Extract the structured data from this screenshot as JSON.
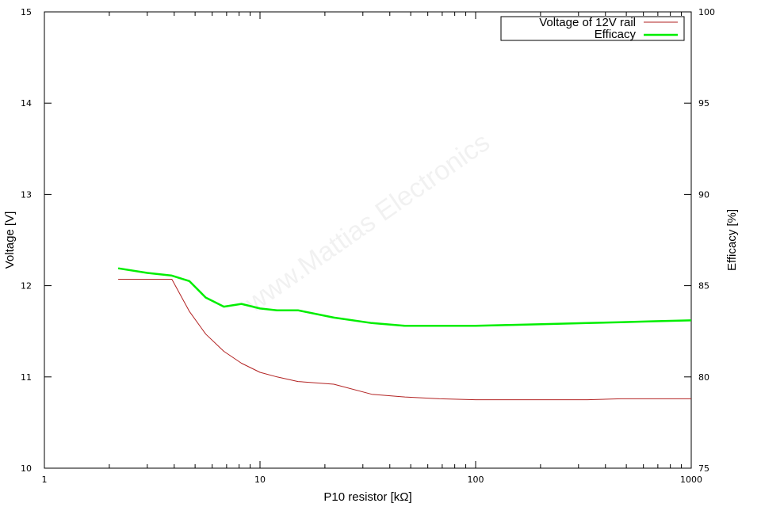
{
  "chart_data": {
    "type": "line",
    "title": "",
    "xlabel": "P10 resistor [kΩ]",
    "ylabel": "Voltage [V]",
    "y2label": "Efficacy [%]",
    "xscale": "log",
    "xlim": [
      1,
      1000
    ],
    "ylim": [
      10,
      15
    ],
    "y2lim": [
      75,
      100
    ],
    "x_ticks": [
      "1",
      "10",
      "100",
      "1000"
    ],
    "y_ticks": [
      "10",
      "11",
      "12",
      "13",
      "14",
      "15"
    ],
    "y2_ticks": [
      "75",
      "80",
      "85",
      "90",
      "95",
      "100"
    ],
    "grid": false,
    "legend_position": "top-right",
    "watermark": "www.Mattias Electronics",
    "series": [
      {
        "name": "Voltage of 12V rail",
        "axis": "left",
        "color": "#b22222",
        "x": [
          2.2,
          3.9,
          4.7,
          5.6,
          6.8,
          8.2,
          10,
          12,
          15,
          22,
          33,
          47,
          68,
          100,
          150,
          220,
          330,
          470,
          680,
          1000
        ],
        "y": [
          12.07,
          12.07,
          11.72,
          11.47,
          11.28,
          11.15,
          11.05,
          11.0,
          10.95,
          10.92,
          10.81,
          10.78,
          10.76,
          10.75,
          10.75,
          10.75,
          10.75,
          10.76,
          10.76,
          10.76
        ]
      },
      {
        "name": "Efficacy",
        "axis": "right",
        "color": "#00ee00",
        "x": [
          2.2,
          3.0,
          3.9,
          4.7,
          5.6,
          6.8,
          8.2,
          10,
          12,
          15,
          22,
          33,
          47,
          68,
          100,
          150,
          220,
          330,
          470,
          680,
          1000
        ],
        "y": [
          85.95,
          85.7,
          85.55,
          85.25,
          84.35,
          83.85,
          84.0,
          83.75,
          83.65,
          83.65,
          83.25,
          82.95,
          82.8,
          82.8,
          82.8,
          82.85,
          82.9,
          82.95,
          83.0,
          83.05,
          83.1
        ]
      }
    ]
  }
}
